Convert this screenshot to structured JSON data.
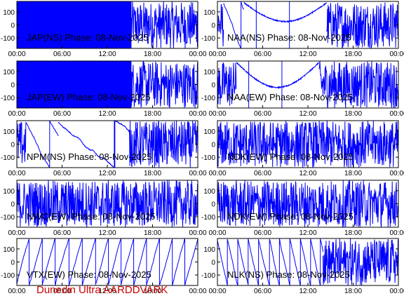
{
  "footer": "Dunedin Ultra AARDDVARK",
  "chart_data": [
    {
      "type": "line",
      "title": "JAP(NS) Phase: 08-Nov-2025",
      "x": [
        "00:00",
        "06:00",
        "12:00",
        "18:00",
        "24:00"
      ],
      "xticks": [
        "00:00",
        "06:00",
        "12:00",
        "18:00",
        "00:00"
      ],
      "yticks": [
        100,
        0,
        -100
      ],
      "ylim": [
        -180,
        180
      ],
      "color": "#0000ff",
      "segments": [
        {
          "kind": "solid",
          "from": 0,
          "to": 15.2
        },
        {
          "kind": "noise",
          "from": 15.2,
          "to": 24
        }
      ]
    },
    {
      "type": "line",
      "title": "NAA(NS) Phase: 08-Nov-2025",
      "xticks": [
        "00:00",
        "06:00",
        "12:00",
        "18:00",
        "00:00"
      ],
      "yticks": [
        100,
        0,
        -100
      ],
      "ylim": [
        -180,
        180
      ],
      "color": "#0000ff",
      "segments": [
        {
          "kind": "noise",
          "from": 0,
          "to": 0.8
        },
        {
          "kind": "wrap",
          "from": 0.8,
          "to": 3.5,
          "slope": -160
        },
        {
          "kind": "bowl",
          "from": 3.5,
          "to": 14.5,
          "depth": 120
        },
        {
          "kind": "noise",
          "from": 14.5,
          "to": 24
        }
      ]
    },
    {
      "type": "line",
      "title": "JAP(EW) Phase: 08-Nov-2025",
      "xticks": [
        "00:00",
        "06:00",
        "12:00",
        "18:00",
        "00:00"
      ],
      "yticks": [
        100,
        0,
        -100
      ],
      "ylim": [
        -180,
        180
      ],
      "color": "#0000ff",
      "segments": [
        {
          "kind": "solid",
          "from": 0,
          "to": 15.2
        },
        {
          "kind": "noise",
          "from": 15.2,
          "to": 24
        }
      ]
    },
    {
      "type": "line",
      "title": "NAA(EW) Phase: 08-Nov-2025",
      "xticks": [
        "00:00",
        "06:00",
        "12:00",
        "18:00",
        "00:00"
      ],
      "yticks": [
        100,
        0,
        -100
      ],
      "ylim": [
        -180,
        180
      ],
      "color": "#0000ff",
      "segments": [
        {
          "kind": "noise",
          "from": 0,
          "to": 2.5
        },
        {
          "kind": "bowl",
          "from": 2.5,
          "to": 13.5,
          "depth": 160
        },
        {
          "kind": "noise",
          "from": 13.5,
          "to": 24
        }
      ]
    },
    {
      "type": "line",
      "title": "NPM(NS) Phase: 08-Nov-2025",
      "xticks": [
        "00:00",
        "06:00",
        "12:00",
        "18:00",
        "00:00"
      ],
      "yticks": [
        100,
        0,
        -100
      ],
      "ylim": [
        -180,
        180
      ],
      "color": "#0000ff",
      "segments": [
        {
          "kind": "noise",
          "from": 0,
          "to": 1.2
        },
        {
          "kind": "wrap",
          "from": 1.2,
          "to": 5.5,
          "slope": -110
        },
        {
          "kind": "wrap",
          "from": 5.5,
          "to": 14.8,
          "slope": -45
        },
        {
          "kind": "noise",
          "from": 14.8,
          "to": 24
        }
      ]
    },
    {
      "type": "line",
      "title": "NDK(EW) Phase: 08-Nov-2025",
      "xticks": [
        "00:00",
        "06:00",
        "12:00",
        "18:00",
        "00:00"
      ],
      "yticks": [
        100,
        0,
        -100
      ],
      "ylim": [
        -180,
        180
      ],
      "color": "#0000ff",
      "segments": [
        {
          "kind": "noise",
          "from": 0,
          "to": 24
        }
      ]
    },
    {
      "type": "line",
      "title": "NWC(EW) Phase: 08-Nov-2025",
      "xticks": [
        "00:00",
        "06:00",
        "12:00",
        "18:00",
        "00:00"
      ],
      "yticks": [
        100,
        0,
        -100
      ],
      "ylim": [
        -180,
        180
      ],
      "color": "#0000ff",
      "segments": [
        {
          "kind": "noise",
          "from": 0,
          "to": 24
        }
      ]
    },
    {
      "type": "line",
      "title": "NDK(EW) Phase: 08-Nov-2025",
      "xticks": [
        "00:00",
        "06:00",
        "12:00",
        "18:00",
        "00:00"
      ],
      "yticks": [
        100,
        0,
        -100
      ],
      "ylim": [
        -180,
        180
      ],
      "color": "#0000ff",
      "segments": [
        {
          "kind": "noise",
          "from": 0,
          "to": 24
        }
      ]
    },
    {
      "type": "line",
      "title": "VTX(EW) Phase: 08-Nov-2025",
      "xticks": [
        "00:00",
        "06:00",
        "12:00",
        "18:00",
        "00:00"
      ],
      "yticks": [
        100,
        0,
        -100
      ],
      "ylim": [
        -180,
        180
      ],
      "color": "#0000ff",
      "segments": [
        {
          "kind": "wrap",
          "from": 0,
          "to": 24,
          "slope": 210
        }
      ]
    },
    {
      "type": "line",
      "title": "NLK(NS) Phase: 08-Nov-2025",
      "xticks": [
        "00:00",
        "06:00",
        "12:00",
        "18:00",
        "00:00"
      ],
      "yticks": [
        100,
        0,
        -100
      ],
      "ylim": [
        -180,
        180
      ],
      "color": "#0000ff",
      "segments": [
        {
          "kind": "wrap",
          "from": 0,
          "to": 14,
          "slope": -260
        },
        {
          "kind": "noise",
          "from": 14,
          "to": 24
        }
      ]
    }
  ]
}
